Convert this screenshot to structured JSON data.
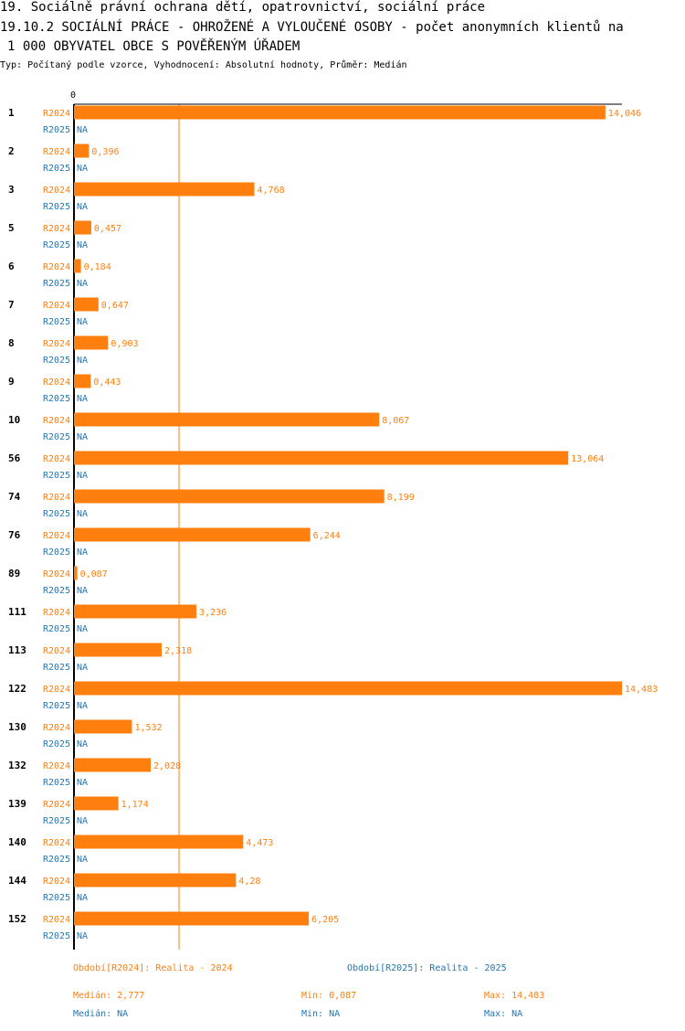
{
  "header": {
    "line1": "19. Sociálně právní ochrana dětí, opatrovnictví, sociální práce",
    "line2": "19.10.2 SOCIÁLNÍ PRÁCE - OHROŽENÉ A VYLOUČENÉ OSOBY - počet anonymních klientů na",
    "line3": "1 000 OBYVATEL OBCE S POVĚŘENÝM ÚŘADEM",
    "subtitle": "Typ: Počítaný podle vzorce, Vyhodnocení: Absolutní hodnoty, Průměr: Medián"
  },
  "colors": {
    "r2024": "#ff7f0e",
    "r2025": "#1f77b4",
    "median_line": "#ff7f0e",
    "axis": "#000000"
  },
  "chart_data": {
    "type": "bar",
    "orientation": "horizontal",
    "axis_zero_label": "0",
    "xlim": [
      0,
      14.483
    ],
    "median_value": 2.777,
    "categories": [
      "1",
      "2",
      "3",
      "5",
      "6",
      "7",
      "8",
      "9",
      "10",
      "56",
      "74",
      "76",
      "89",
      "111",
      "113",
      "122",
      "130",
      "132",
      "139",
      "140",
      "144",
      "152"
    ],
    "series": [
      {
        "name": "R2024",
        "values": [
          14.046,
          0.396,
          4.768,
          0.457,
          0.184,
          0.647,
          0.903,
          0.443,
          8.067,
          13.064,
          8.199,
          6.244,
          0.087,
          3.236,
          2.318,
          14.483,
          1.532,
          2.028,
          1.174,
          4.473,
          4.28,
          6.205
        ],
        "labels": [
          "14,046",
          "0,396",
          "4,768",
          "0,457",
          "0,184",
          "0,647",
          "0,903",
          "0,443",
          "8,067",
          "13,064",
          "8,199",
          "6,244",
          "0,087",
          "3,236",
          "2,318",
          "14,483",
          "1,532",
          "2,028",
          "1,174",
          "4,473",
          "4,28",
          "6,205"
        ]
      },
      {
        "name": "R2025",
        "values": [
          null,
          null,
          null,
          null,
          null,
          null,
          null,
          null,
          null,
          null,
          null,
          null,
          null,
          null,
          null,
          null,
          null,
          null,
          null,
          null,
          null,
          null
        ],
        "labels": [
          "NA",
          "NA",
          "NA",
          "NA",
          "NA",
          "NA",
          "NA",
          "NA",
          "NA",
          "NA",
          "NA",
          "NA",
          "NA",
          "NA",
          "NA",
          "NA",
          "NA",
          "NA",
          "NA",
          "NA",
          "NA",
          "NA"
        ]
      }
    ]
  },
  "footer": {
    "legend_2024": "Období[R2024]: Realita - 2024",
    "legend_2025": "Období[R2025]: Realita - 2025",
    "median_2024": "Medián: 2,777",
    "min_2024": "Min: 0,087",
    "max_2024": "Max: 14,483",
    "median_2025": "Medián: NA",
    "min_2025": "Min: NA",
    "max_2025": "Max: NA"
  }
}
